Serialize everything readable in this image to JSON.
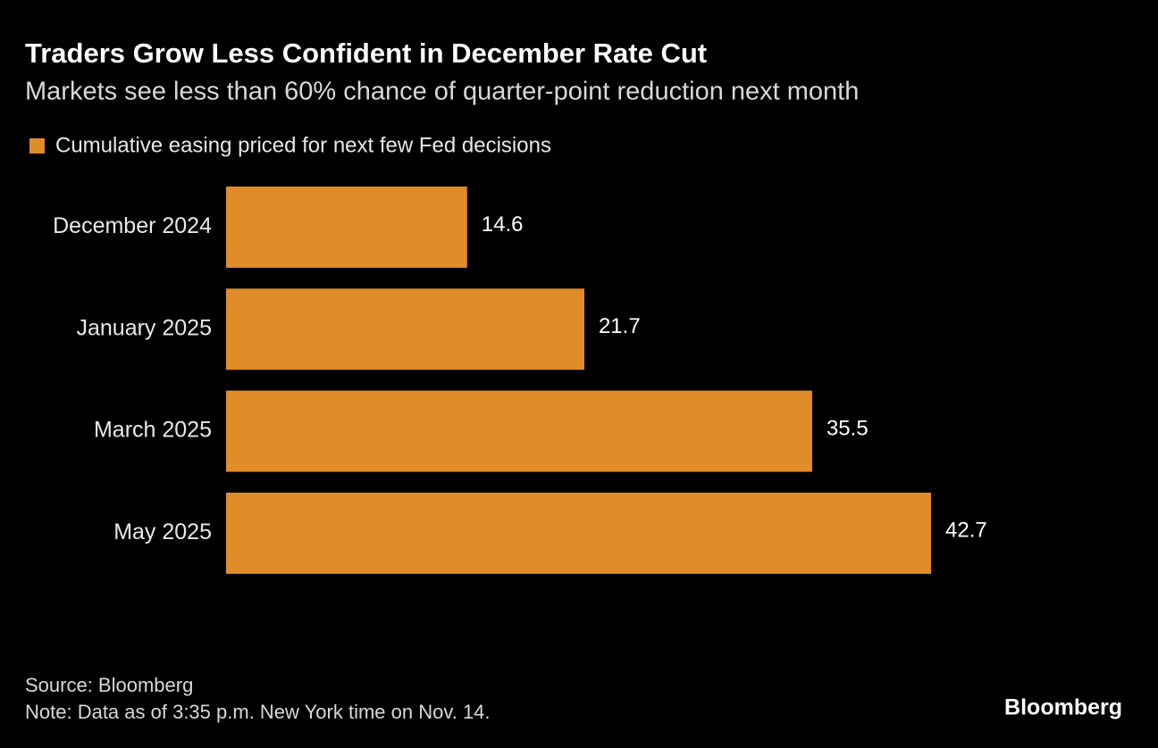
{
  "chart_data": {
    "type": "bar",
    "orientation": "horizontal",
    "title": "Traders Grow Less Confident in December Rate Cut",
    "subtitle": "Markets see less than 60% chance of quarter-point reduction next month",
    "categories": [
      "December 2024",
      "January 2025",
      "March 2025",
      "May 2025"
    ],
    "series": [
      {
        "name": "Cumulative easing priced for next few Fed decisions",
        "color": "#e08c28",
        "values": [
          14.6,
          21.7,
          35.5,
          42.7
        ]
      }
    ],
    "source": "Source: Bloomberg",
    "note": "Note: Data as of 3:35 p.m. New York time on Nov. 14.",
    "logo": "Bloomberg"
  }
}
